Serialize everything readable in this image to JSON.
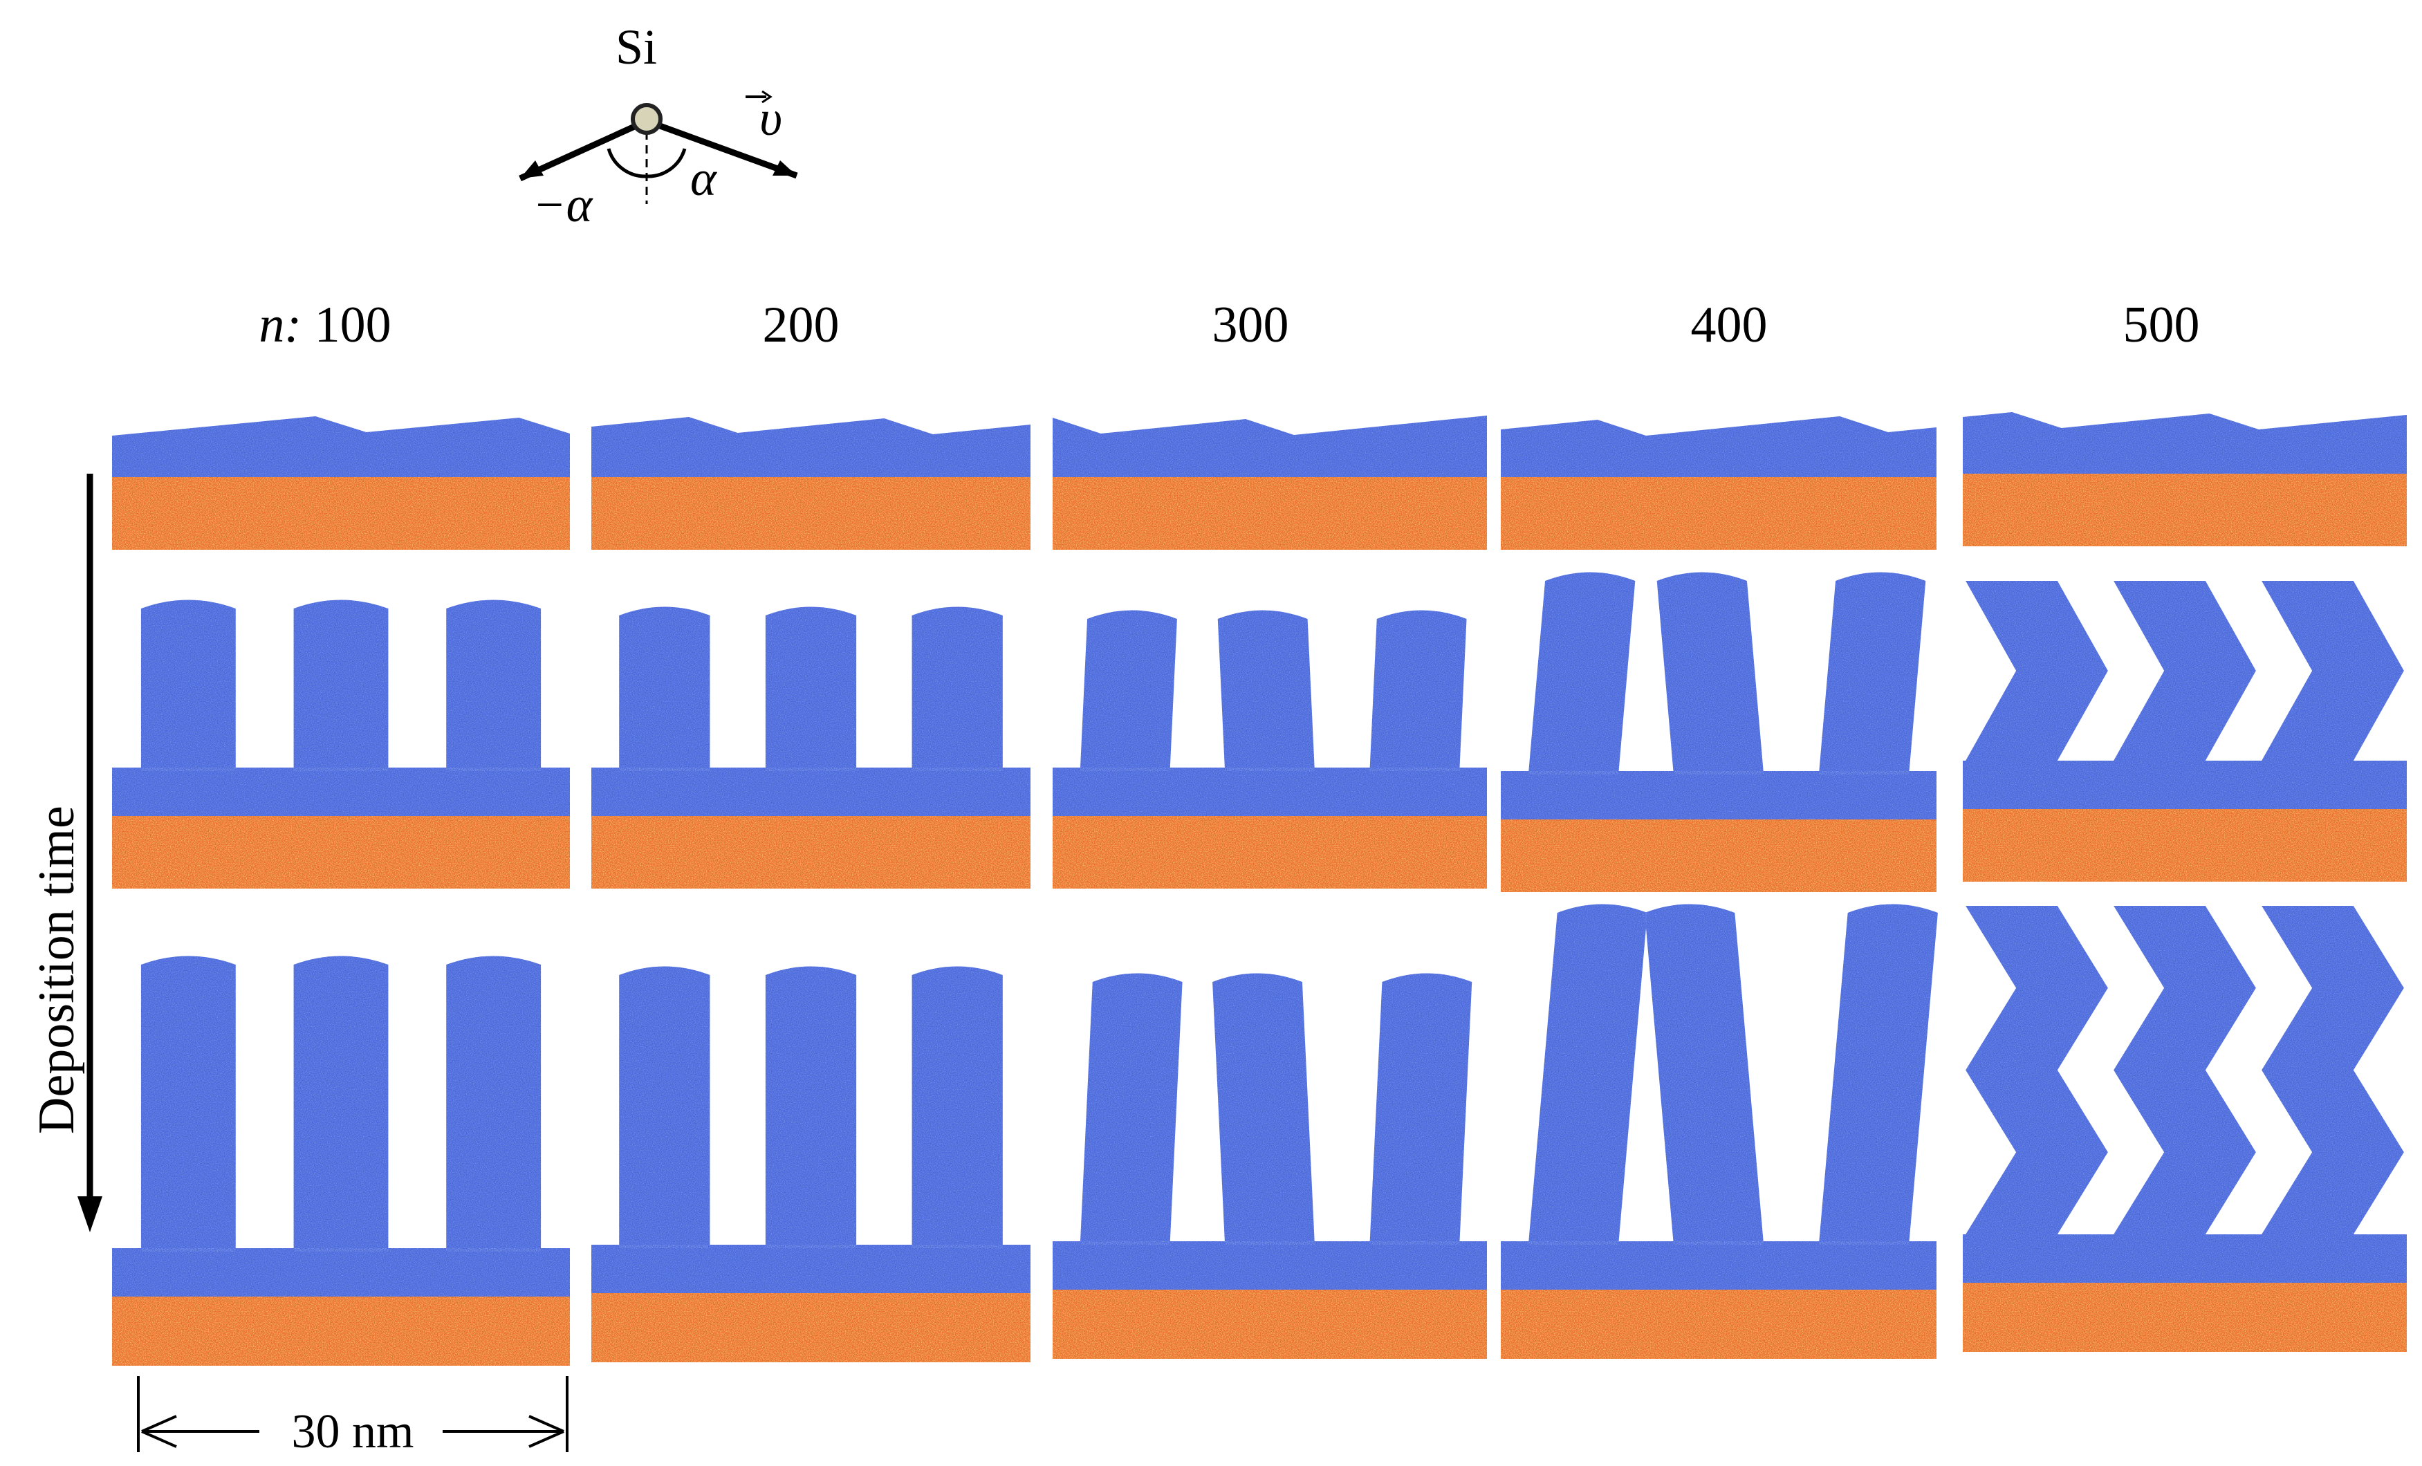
{
  "figure": {
    "incident_diagram": {
      "atom_label": "Si",
      "velocity_label": "υ",
      "angle_label": "α",
      "negative_angle_label": "−α"
    },
    "variable_label": "n: ",
    "column_labels": [
      "100",
      "200",
      "300",
      "400",
      "500"
    ],
    "row_axis_label": "Deposition time",
    "scale_bar_label": "30 nm",
    "colors": {
      "film_atoms": "#4a68dc",
      "film_highlight": "#7fa8e8",
      "substrate_atoms": "#f07a2a",
      "substrate_highlight": "#f5c54a",
      "substrate_deep": "#d8442a",
      "background": "#ffffff"
    },
    "panel_descriptions": [
      [
        "thin film",
        "thin film",
        "thin film",
        "thin film",
        "thin film"
      ],
      [
        "columns",
        "columns",
        "columns",
        "tilted columns",
        "zigzag columns"
      ],
      [
        "tall columns",
        "tall columns",
        "tall columns",
        "tilted columns",
        "zigzag columns"
      ]
    ]
  }
}
